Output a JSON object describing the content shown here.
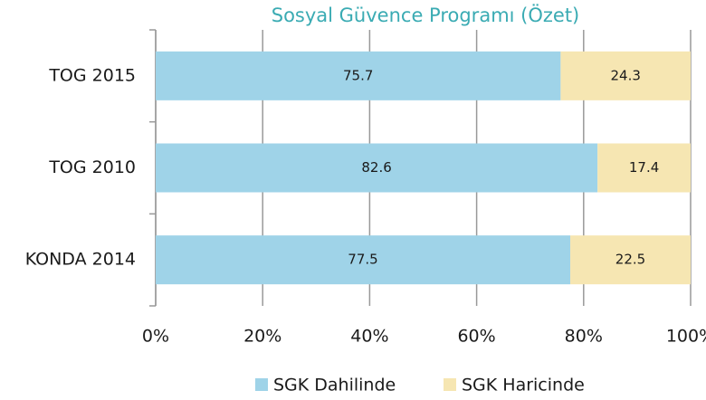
{
  "chart_data": {
    "type": "bar",
    "orientation": "horizontal",
    "stacked": true,
    "title": "Sosyal Güvence Programı (Özet)",
    "categories": [
      "TOG 2015",
      "TOG 2010",
      "KONDA 2014"
    ],
    "series": [
      {
        "name": "SGK Dahilinde",
        "color": "#9fd3e8",
        "values": [
          75.7,
          82.6,
          77.5
        ]
      },
      {
        "name": "SGK Haricinde",
        "color": "#f6e6b2",
        "values": [
          24.3,
          17.4,
          22.5
        ]
      }
    ],
    "xlim": [
      0,
      100
    ],
    "xticks": [
      {
        "value": 0,
        "label": "0%"
      },
      {
        "value": 20,
        "label": "20%"
      },
      {
        "value": 40,
        "label": "40%"
      },
      {
        "value": 60,
        "label": "60%"
      },
      {
        "value": 80,
        "label": "80%"
      },
      {
        "value": 100,
        "label": "100%"
      }
    ],
    "grid": true,
    "legend": "bottom"
  }
}
